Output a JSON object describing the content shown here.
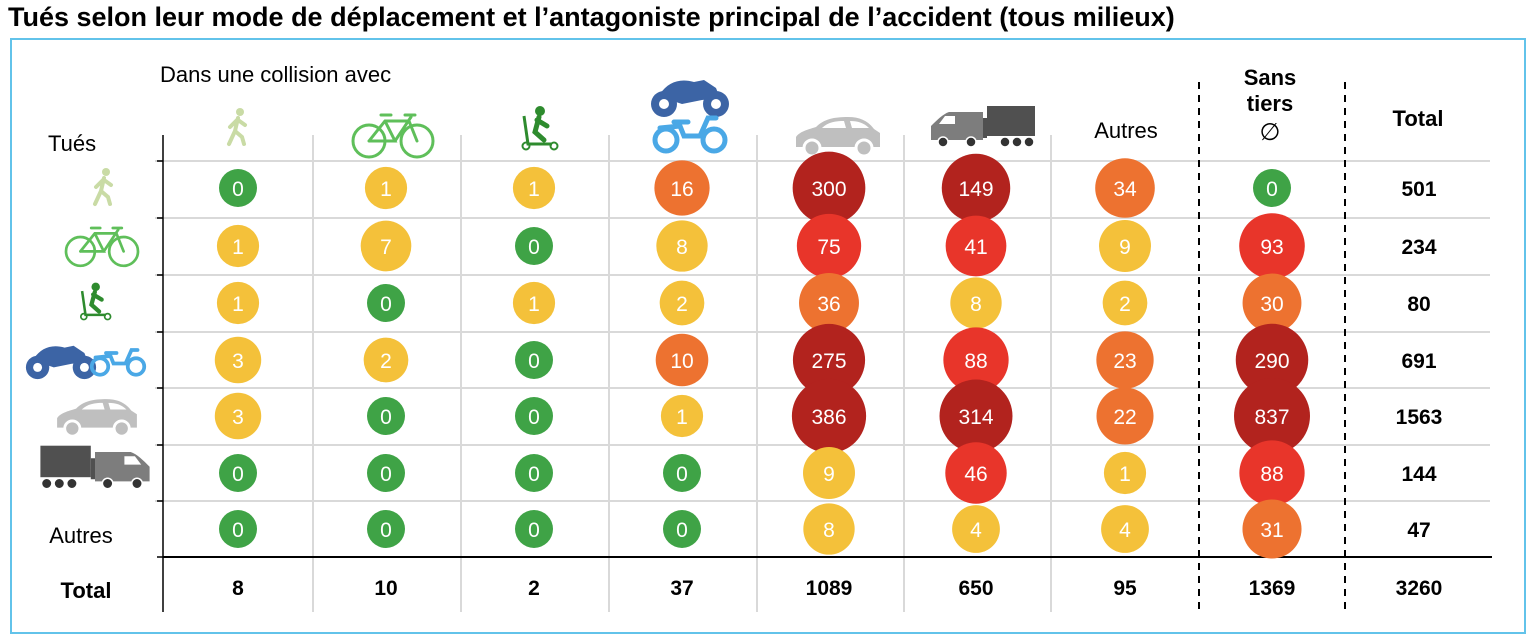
{
  "title": "Tués selon leur mode de déplacement et l’antagoniste principal de l’accident (tous milieux)",
  "chart_data": {
    "type": "bubble-matrix",
    "column_header": "Dans une collision avec",
    "row_header": "Tués",
    "columns": [
      {
        "key": "pieton",
        "icon": "pedestrian-icon"
      },
      {
        "key": "velo",
        "icon": "bicycle-icon"
      },
      {
        "key": "edp",
        "icon": "scooter-icon"
      },
      {
        "key": "2rm",
        "icon": "motorcycle-moped-icon"
      },
      {
        "key": "vt",
        "icon": "car-icon"
      },
      {
        "key": "pl",
        "icon": "truck-van-icon"
      },
      {
        "key": "autres",
        "label": "Autres"
      },
      {
        "key": "sans_tiers",
        "label_line1": "Sans",
        "label_line2": "tiers",
        "symbol": "∅"
      },
      {
        "key": "total",
        "label": "Total"
      }
    ],
    "rows": [
      {
        "key": "pieton",
        "icon": "pedestrian-icon",
        "values": [
          0,
          1,
          1,
          16,
          300,
          149,
          34,
          0
        ],
        "total": 501
      },
      {
        "key": "velo",
        "icon": "bicycle-icon",
        "values": [
          1,
          7,
          0,
          8,
          75,
          41,
          9,
          93
        ],
        "total": 234
      },
      {
        "key": "edp",
        "icon": "scooter-icon",
        "values": [
          1,
          0,
          1,
          2,
          36,
          8,
          2,
          30
        ],
        "total": 80
      },
      {
        "key": "2rm",
        "icon": "motorcycle-moped-icon",
        "values": [
          3,
          2,
          0,
          10,
          275,
          88,
          23,
          290
        ],
        "total": 691
      },
      {
        "key": "vt",
        "icon": "car-icon",
        "values": [
          3,
          0,
          0,
          1,
          386,
          314,
          22,
          837
        ],
        "total": 1563
      },
      {
        "key": "pl",
        "icon": "truck-van-icon",
        "values": [
          0,
          0,
          0,
          0,
          9,
          46,
          1,
          88
        ],
        "total": 144
      },
      {
        "key": "autres",
        "label": "Autres",
        "values": [
          0,
          0,
          0,
          0,
          8,
          4,
          4,
          31
        ],
        "total": 47
      }
    ],
    "total_row": {
      "label": "Total",
      "values": [
        8,
        10,
        2,
        37,
        1089,
        650,
        95,
        1369
      ],
      "total": 3260
    },
    "color_scale": [
      {
        "max": 0,
        "color": "#3fa346"
      },
      {
        "max": 9,
        "color": "#f4c13a"
      },
      {
        "max": 39,
        "color": "#ed7230"
      },
      {
        "max": 99,
        "color": "#e8352a"
      },
      {
        "max": 100000,
        "color": "#b2231e"
      }
    ],
    "icon_colors": {
      "pedestrian": "#c9dba5",
      "bicycle": "#5fbf5a",
      "scooter": "#2e8b2e",
      "motorcycle": "#3c64a5",
      "moped": "#4aa8e6",
      "car": "#bfbfbf",
      "truck": "#505050",
      "van": "#7d7d7d"
    },
    "frame_color": "#62c3ea"
  }
}
